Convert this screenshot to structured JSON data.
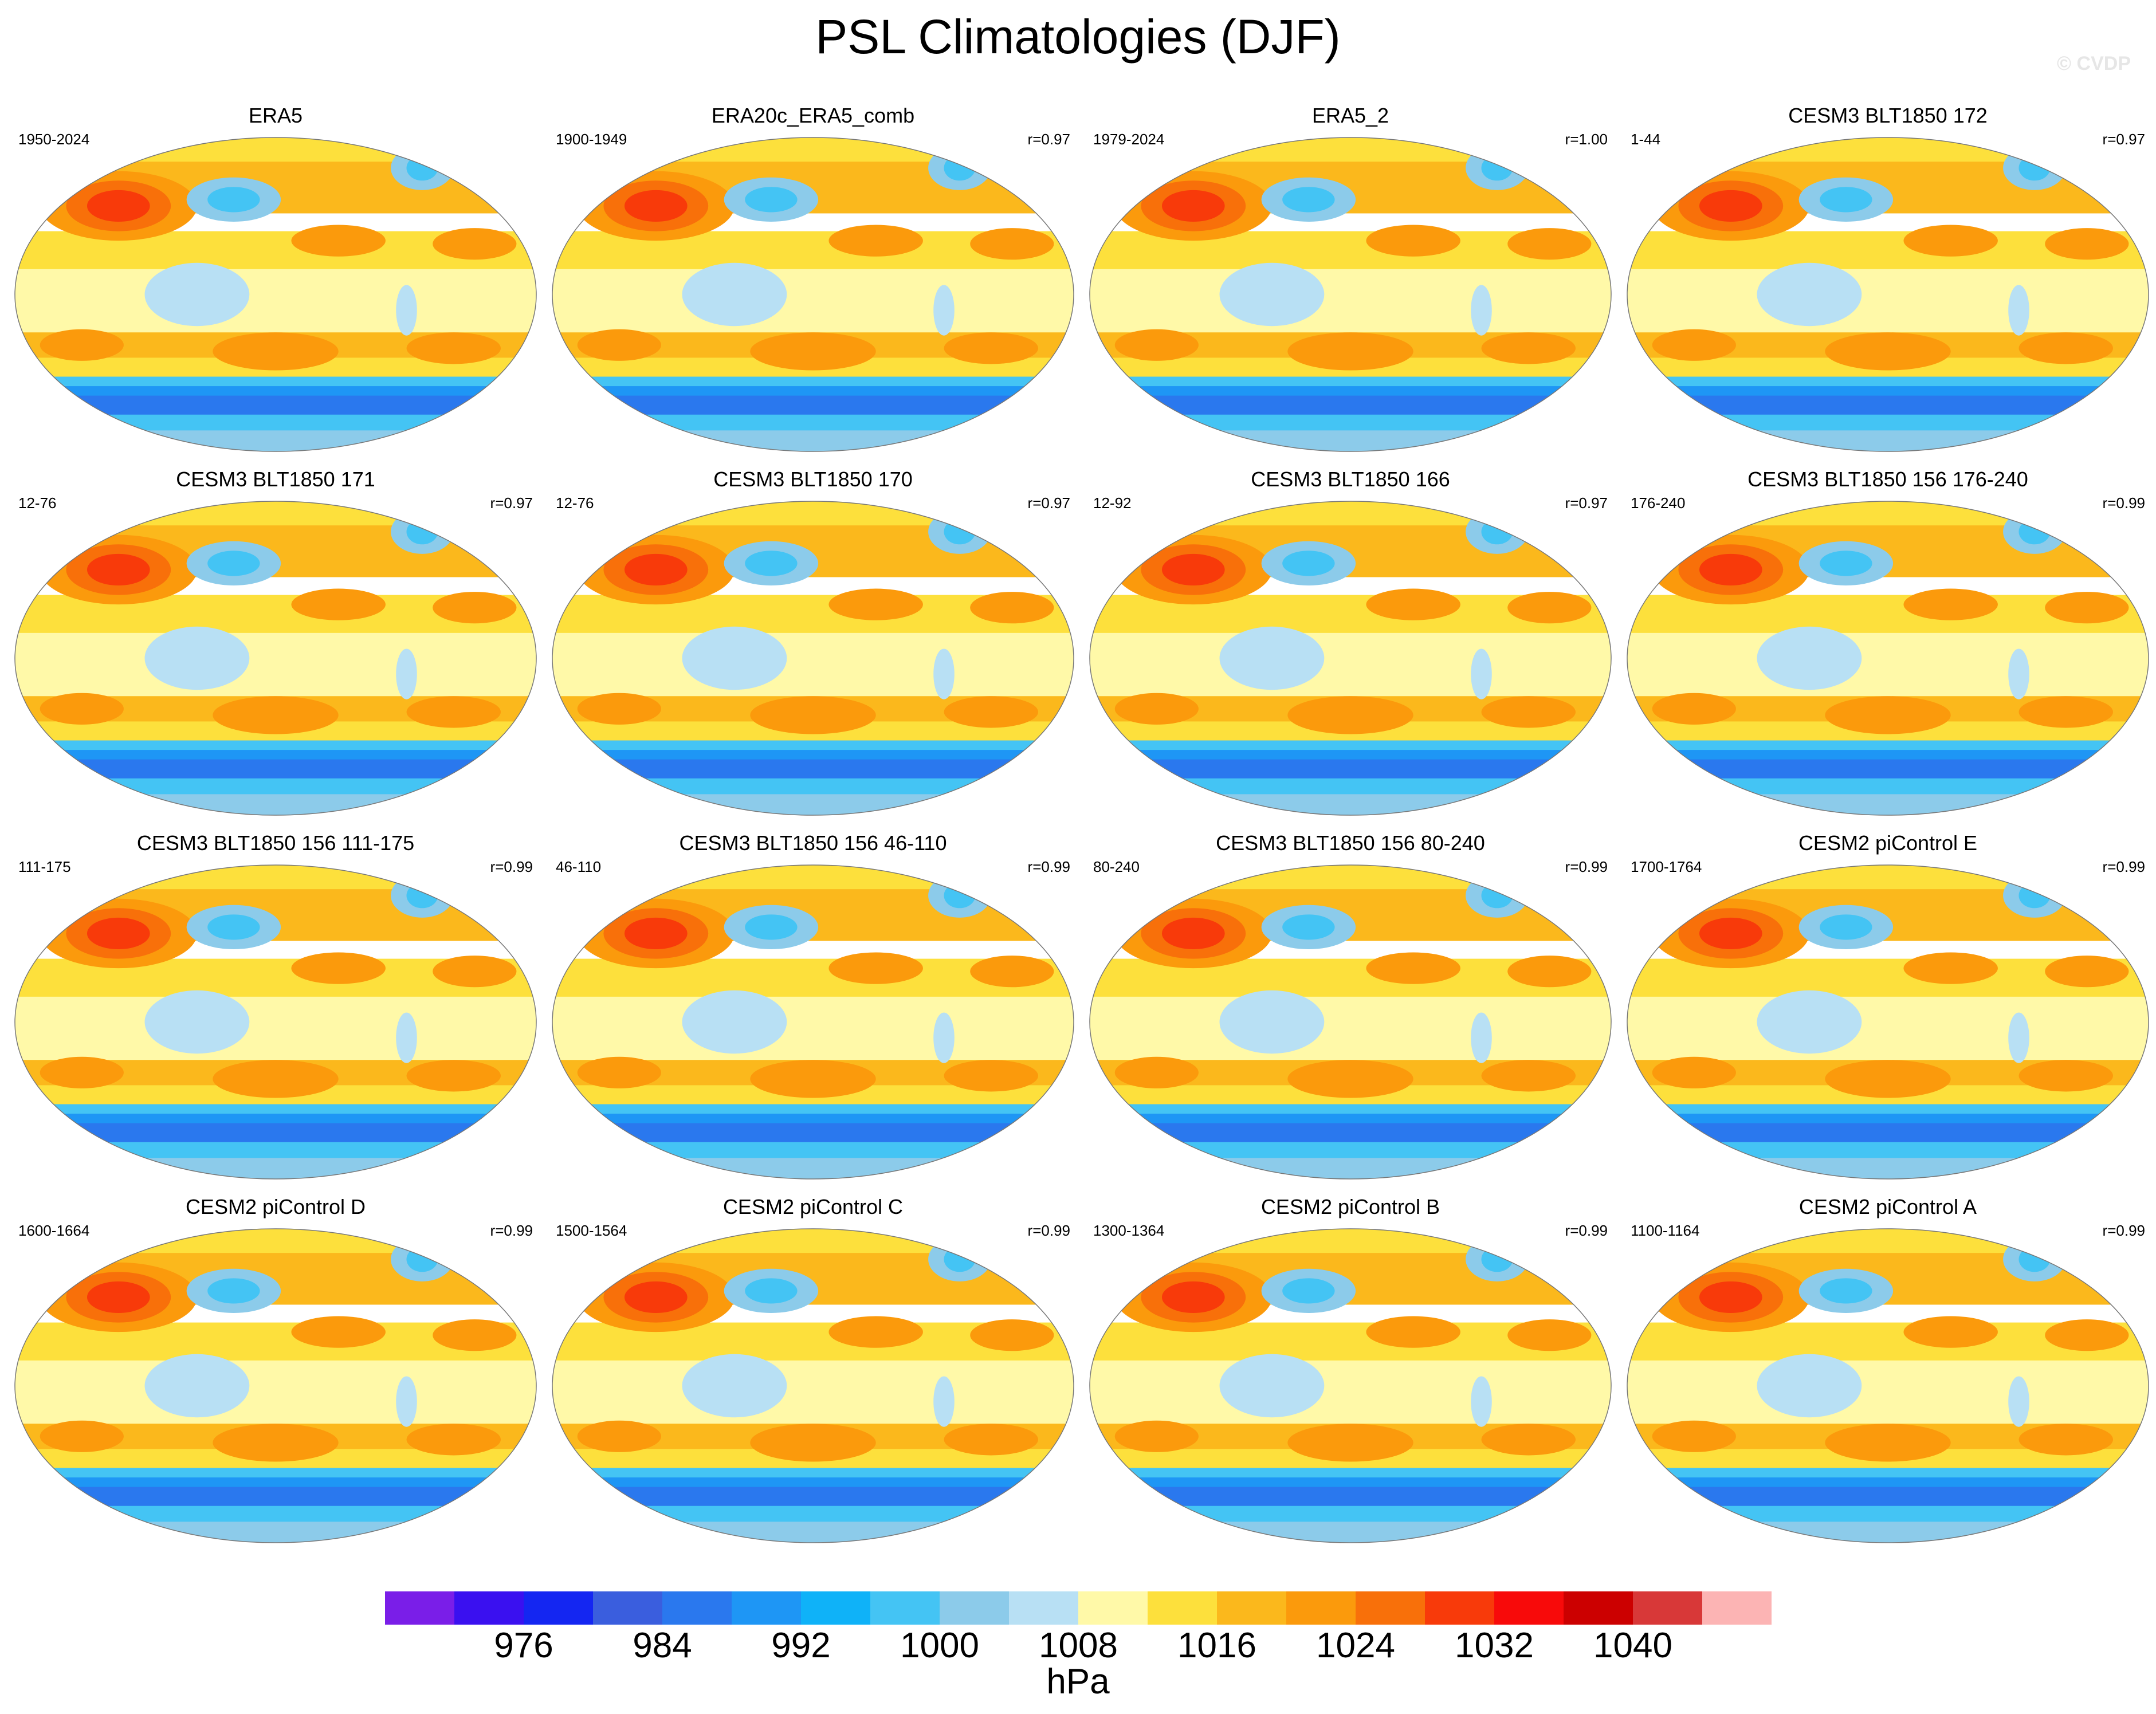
{
  "title": "PSL Climatologies (DJF)",
  "watermark": "© CVDP",
  "chart_data": {
    "type": "heatmap",
    "variable": "PSL",
    "season": "DJF",
    "projection": "global map (elliptical)",
    "panels": [
      {
        "title": "ERA5",
        "period": "1950-2024",
        "corr": ""
      },
      {
        "title": "ERA20c_ERA5_comb",
        "period": "1900-1949",
        "corr": "r=0.97"
      },
      {
        "title": "ERA5_2",
        "period": "1979-2024",
        "corr": "r=1.00"
      },
      {
        "title": "CESM3 BLT1850 172",
        "period": "1-44",
        "corr": "r=0.97"
      },
      {
        "title": "CESM3 BLT1850 171",
        "period": "12-76",
        "corr": "r=0.97"
      },
      {
        "title": "CESM3 BLT1850 170",
        "period": "12-76",
        "corr": "r=0.97"
      },
      {
        "title": "CESM3 BLT1850 166",
        "period": "12-92",
        "corr": "r=0.97"
      },
      {
        "title": "CESM3 BLT1850 156 176-240",
        "period": "176-240",
        "corr": "r=0.99"
      },
      {
        "title": "CESM3 BLT1850 156 111-175",
        "period": "111-175",
        "corr": "r=0.99"
      },
      {
        "title": "CESM3 BLT1850 156 46-110",
        "period": "46-110",
        "corr": "r=0.99"
      },
      {
        "title": "CESM3 BLT1850 156 80-240",
        "period": "80-240",
        "corr": "r=0.99"
      },
      {
        "title": "CESM2 piControl E",
        "period": "1700-1764",
        "corr": "r=0.99"
      },
      {
        "title": "CESM2 piControl D",
        "period": "1600-1664",
        "corr": "r=0.99"
      },
      {
        "title": "CESM2 piControl C",
        "period": "1500-1564",
        "corr": "r=0.99"
      },
      {
        "title": "CESM2 piControl B",
        "period": "1300-1364",
        "corr": "r=0.99"
      },
      {
        "title": "CESM2 piControl A",
        "period": "1100-1164",
        "corr": "r=0.99"
      }
    ],
    "colorbar": {
      "units": "hPa",
      "levels": [
        972,
        976,
        980,
        984,
        988,
        992,
        996,
        1000,
        1004,
        1008,
        1012,
        1016,
        1020,
        1024,
        1028,
        1032,
        1036,
        1040,
        1044
      ],
      "tick_labels": [
        "976",
        "984",
        "992",
        "1000",
        "1008",
        "1016",
        "1024",
        "1032",
        "1040"
      ],
      "colors": [
        "#7a1ee8",
        "#3a10f0",
        "#1426f2",
        "#3a5ede",
        "#2a78ee",
        "#1e96f5",
        "#0fb2f8",
        "#44c4f4",
        "#8ccbea",
        "#b8e0f4",
        "#fff9a8",
        "#fde03c",
        "#fbb81c",
        "#fb9a0c",
        "#f8700a",
        "#f83a0a",
        "#f80a0a",
        "#cc0000",
        "#d83838",
        "#fcb4b4"
      ]
    }
  }
}
